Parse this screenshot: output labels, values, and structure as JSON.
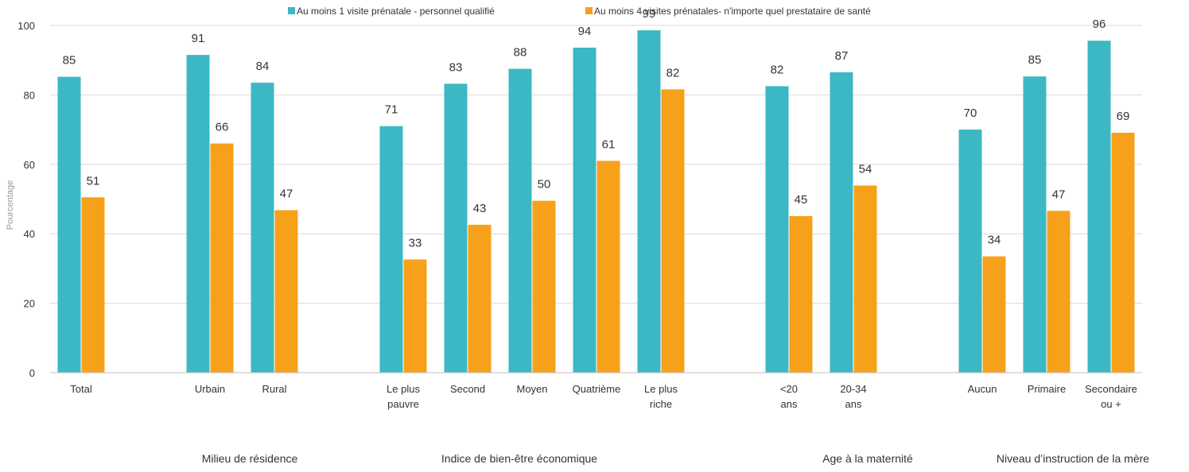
{
  "chart_data": {
    "type": "bar",
    "ylabel": "Pourcentage",
    "ylim": [
      0,
      100
    ],
    "yticks": [
      0,
      20,
      40,
      60,
      80,
      100
    ],
    "grid": true,
    "legend_position": "top",
    "categories": [
      {
        "label": [
          "Total"
        ],
        "group": 0
      },
      {
        "label": [
          "Urbain"
        ],
        "group": 1
      },
      {
        "label": [
          "Rural"
        ],
        "group": 1
      },
      {
        "label": [
          "Le plus",
          "pauvre"
        ],
        "group": 2
      },
      {
        "label": [
          "Second"
        ],
        "group": 2
      },
      {
        "label": [
          "Moyen"
        ],
        "group": 2
      },
      {
        "label": [
          "Quatrième"
        ],
        "group": 2
      },
      {
        "label": [
          "Le plus",
          "riche"
        ],
        "group": 2
      },
      {
        "label": [
          "<20",
          "ans"
        ],
        "group": 3
      },
      {
        "label": [
          "20-34",
          "ans"
        ],
        "group": 3
      },
      {
        "label": [
          "Aucun"
        ],
        "group": 4
      },
      {
        "label": [
          "Primaire"
        ],
        "group": 4
      },
      {
        "label": [
          "Secondaire",
          "ou +"
        ],
        "group": 4
      }
    ],
    "groups": [
      "",
      "Milieu de résidence",
      "Indice de bien-être économique",
      "Age à la maternité",
      "Niveau d’instruction  de la mère"
    ],
    "series": [
      {
        "name": "Au moins 1 visite prénatale - personnel qualifié",
        "color": "#3bb8c4",
        "values": [
          85.2,
          91.5,
          83.5,
          71.0,
          83.2,
          87.5,
          93.6,
          98.6,
          82.5,
          86.5,
          70.0,
          85.3,
          95.6
        ],
        "labels": [
          "85",
          "91",
          "84",
          "71",
          "83",
          "88",
          "94",
          "99",
          "82",
          "87",
          "70",
          "85",
          "96"
        ]
      },
      {
        "name": "Au moins 4 visites prénatales- n'importe quel prestataire de santé",
        "color": "#f7a11a",
        "values": [
          50.5,
          66.0,
          46.8,
          32.6,
          42.6,
          49.5,
          61.0,
          81.6,
          45.1,
          53.9,
          33.5,
          46.6,
          69.1
        ],
        "labels": [
          "51",
          "66",
          "47",
          "33",
          "43",
          "50",
          "61",
          "82",
          "45",
          "54",
          "34",
          "47",
          "69"
        ]
      }
    ]
  }
}
